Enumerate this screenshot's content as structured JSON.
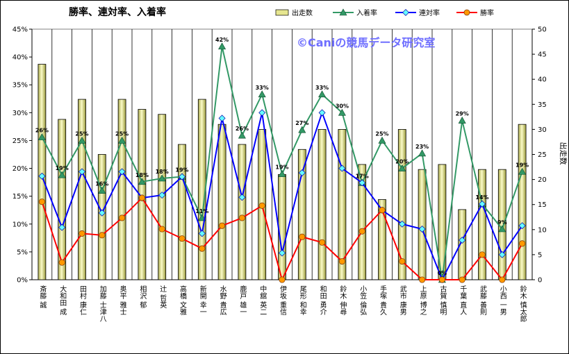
{
  "chart_data": {
    "type": "bar",
    "title": "勝率、連対率、入着率",
    "watermark": "©Caniの競馬データ研究室",
    "y2label": "出走数",
    "ylim": [
      0,
      45
    ],
    "y2lim": [
      0,
      50
    ],
    "yticks": [
      "0%",
      "5%",
      "10%",
      "15%",
      "20%",
      "25%",
      "30%",
      "35%",
      "40%",
      "45%"
    ],
    "y2ticks": [
      "0",
      "5",
      "10",
      "15",
      "20",
      "25",
      "30",
      "35",
      "40",
      "45",
      "50"
    ],
    "legend_position": "top",
    "grid": "vertical",
    "categories": [
      "斎藤 誠",
      "大和田 成",
      "田村 康仁",
      "加藤 士津八",
      "奥平 雅士",
      "相沢 郁",
      "辻 哲英",
      "高橋 文雅",
      "新開 幸一",
      "水野 貴広",
      "鹿戸 雄一",
      "中舘 英二",
      "伊坂 重信",
      "尾形 和幸",
      "和田 勇介",
      "鈴木 伸尋",
      "小笠 倫弘",
      "手塚 貴久",
      "武市 康男",
      "上原 博之",
      "古賀 慎明",
      "千葉 直人",
      "武藤 善則",
      "小西 一男",
      "鈴木 慎太郎"
    ],
    "series": [
      {
        "name": "出走数",
        "kind": "bar",
        "axis": "right",
        "color": "#e6e690",
        "values": [
          43,
          32,
          36,
          25,
          36,
          34,
          33,
          27,
          36,
          31,
          27,
          30,
          21,
          26,
          30,
          30,
          23,
          16,
          30,
          22,
          23,
          14,
          22,
          22,
          31
        ]
      },
      {
        "name": "入着率",
        "kind": "line",
        "axis": "left",
        "color": "#339966",
        "values": [
          25.6,
          18.8,
          25.0,
          16.0,
          25.0,
          17.6,
          18.2,
          18.5,
          11.1,
          41.9,
          25.9,
          33.3,
          19.0,
          26.9,
          33.3,
          30.0,
          17.4,
          25.0,
          20.0,
          22.7,
          0,
          28.6,
          13.6,
          9.1,
          19.4
        ],
        "labels": [
          "26%",
          "19%",
          "25%",
          "16%",
          "25%",
          "18%",
          "18%",
          "19%",
          "11%",
          "42%",
          "26%",
          "33%",
          "19%",
          "27%",
          "33%",
          "30%",
          "17%",
          "25%",
          "20%",
          "23%",
          "0%",
          "29%",
          "14%",
          "9%",
          "19%"
        ]
      },
      {
        "name": "連対率",
        "kind": "line",
        "axis": "left",
        "color": "#0000ff",
        "values": [
          18.6,
          9.4,
          19.4,
          12.0,
          19.4,
          14.7,
          15.2,
          18.5,
          8.3,
          29.0,
          14.8,
          30.0,
          4.8,
          19.2,
          30.0,
          20.0,
          17.4,
          12.5,
          10.0,
          9.1,
          0,
          7.1,
          13.6,
          4.5,
          9.7
        ]
      },
      {
        "name": "勝率",
        "kind": "line",
        "axis": "left",
        "color": "#ff0000",
        "values": [
          14.0,
          3.1,
          8.3,
          8.0,
          11.1,
          14.7,
          9.1,
          7.4,
          5.6,
          9.7,
          11.1,
          13.3,
          0,
          7.7,
          6.7,
          3.3,
          8.7,
          12.5,
          3.3,
          0,
          0,
          0,
          4.5,
          0,
          6.5
        ]
      }
    ]
  }
}
